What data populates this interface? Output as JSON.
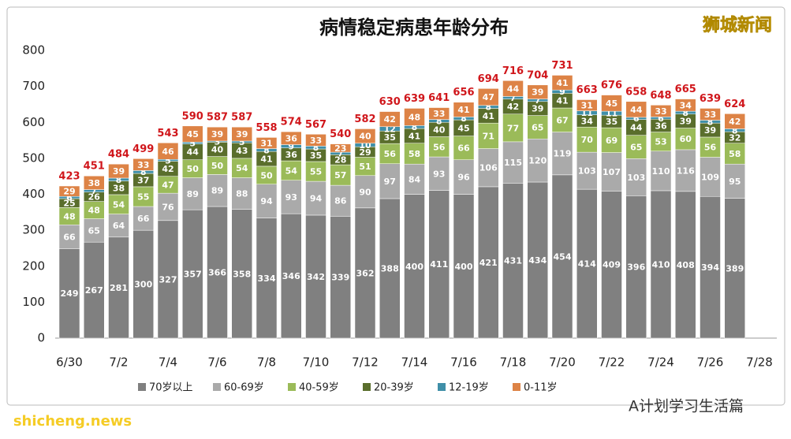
{
  "chart_data": {
    "type": "stacked_bar",
    "title": "病情稳定病患年龄分布",
    "categories": [
      "6/30",
      null,
      "7/2",
      null,
      "7/4",
      null,
      "7/6",
      null,
      "7/8",
      null,
      "7/10",
      null,
      "7/12",
      null,
      "7/14",
      null,
      "7/16",
      null,
      "7/18",
      null,
      "7/20",
      null,
      "7/22",
      null,
      "7/24",
      null,
      "7/26",
      null,
      "7/28"
    ],
    "series": [
      {
        "name": "70岁以上",
        "color": "#808080",
        "values": [
          249,
          267,
          281,
          300,
          327,
          357,
          366,
          358,
          334,
          346,
          342,
          339,
          362,
          388,
          400,
          411,
          400,
          421,
          431,
          434,
          454,
          414,
          409,
          396,
          410,
          408,
          394,
          389,
          null
        ]
      },
      {
        "name": "60-69岁",
        "color": "#aaaaaa",
        "values": [
          66,
          65,
          64,
          66,
          76,
          89,
          89,
          88,
          94,
          93,
          94,
          86,
          90,
          97,
          84,
          93,
          96,
          106,
          115,
          120,
          119,
          103,
          107,
          103,
          110,
          116,
          109,
          95,
          null
        ]
      },
      {
        "name": "40-59岁",
        "color": "#9bbb59",
        "values": [
          48,
          48,
          54,
          55,
          47,
          50,
          50,
          54,
          50,
          54,
          55,
          57,
          51,
          56,
          58,
          56,
          66,
          71,
          77,
          65,
          67,
          70,
          69,
          65,
          53,
          60,
          56,
          58,
          null
        ]
      },
      {
        "name": "20-39岁",
        "color": "#5a6e2c",
        "values": [
          25,
          26,
          38,
          37,
          42,
          44,
          40,
          43,
          41,
          36,
          35,
          28,
          29,
          35,
          41,
          40,
          45,
          41,
          42,
          39,
          41,
          34,
          35,
          44,
          36,
          39,
          39,
          32,
          null
        ]
      },
      {
        "name": "12-19岁",
        "color": "#3f8fa8",
        "values": [
          6,
          7,
          8,
          8,
          5,
          5,
          3,
          5,
          8,
          9,
          8,
          7,
          10,
          12,
          8,
          8,
          8,
          8,
          7,
          7,
          9,
          11,
          11,
          6,
          6,
          8,
          8,
          8,
          null
        ]
      },
      {
        "name": "0-11岁",
        "color": "#dd8346",
        "values": [
          29,
          38,
          39,
          33,
          46,
          45,
          39,
          39,
          31,
          36,
          33,
          23,
          40,
          42,
          48,
          33,
          41,
          47,
          44,
          39,
          41,
          31,
          45,
          44,
          33,
          34,
          33,
          42,
          null
        ]
      }
    ],
    "totals": [
      423,
      451,
      484,
      499,
      543,
      590,
      587,
      587,
      558,
      574,
      567,
      540,
      582,
      630,
      639,
      641,
      656,
      694,
      716,
      704,
      731,
      663,
      676,
      658,
      648,
      665,
      639,
      624,
      null
    ],
    "ylim": [
      0,
      800
    ],
    "yticks": [
      0,
      100,
      200,
      300,
      400,
      500,
      600,
      700,
      800
    ],
    "legend": "bottom"
  },
  "watermarks": {
    "brand": "狮城新闻",
    "site": "shicheng.news",
    "account": "A计划学习生活篇"
  }
}
